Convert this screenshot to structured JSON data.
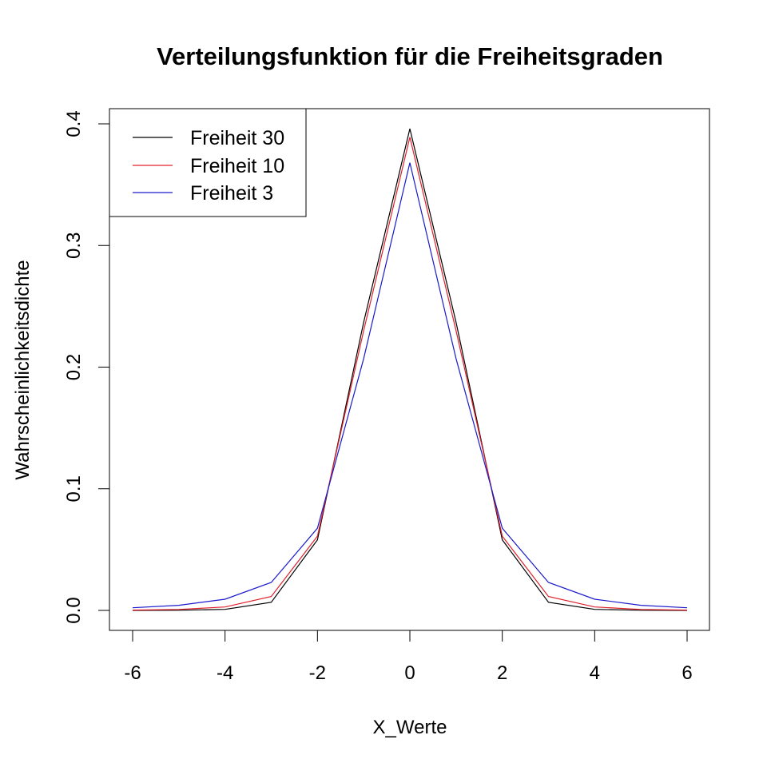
{
  "chart_data": {
    "type": "line",
    "title": "Verteilungsfunktion für die Freiheitsgraden",
    "xlabel": "X_Werte",
    "ylabel": "Wahrscheinlichkeitsdichte",
    "xlim": [
      -6,
      6
    ],
    "ylim": [
      0,
      0.4
    ],
    "x_ticks": [
      "-6",
      "-4",
      "-2",
      "0",
      "2",
      "4",
      "6"
    ],
    "y_ticks": [
      "0.0",
      "0.1",
      "0.2",
      "0.3",
      "0.4"
    ],
    "grid": false,
    "legend_position": "top-left",
    "x": [
      -6,
      -5,
      -4,
      -3,
      -2,
      -1,
      0,
      1,
      2,
      3,
      4,
      5,
      6
    ],
    "series": [
      {
        "name": "Freiheit 30",
        "color": "#000000",
        "values": [
          1e-05,
          0.00011,
          0.00084,
          0.0067,
          0.058,
          0.237,
          0.396,
          0.237,
          0.058,
          0.0067,
          0.00084,
          0.00011,
          1e-05
        ]
      },
      {
        "name": "Freiheit 10",
        "color": "#e0202a",
        "values": [
          0.00025,
          0.00081,
          0.00284,
          0.0114,
          0.061,
          0.23,
          0.389,
          0.23,
          0.061,
          0.0114,
          0.00284,
          0.00081,
          0.00025
        ]
      },
      {
        "name": "Freiheit 3",
        "color": "#1a1acc",
        "values": [
          0.0022,
          0.0042,
          0.0092,
          0.023,
          0.0675,
          0.207,
          0.368,
          0.207,
          0.0675,
          0.023,
          0.0092,
          0.0042,
          0.0022
        ]
      }
    ]
  }
}
